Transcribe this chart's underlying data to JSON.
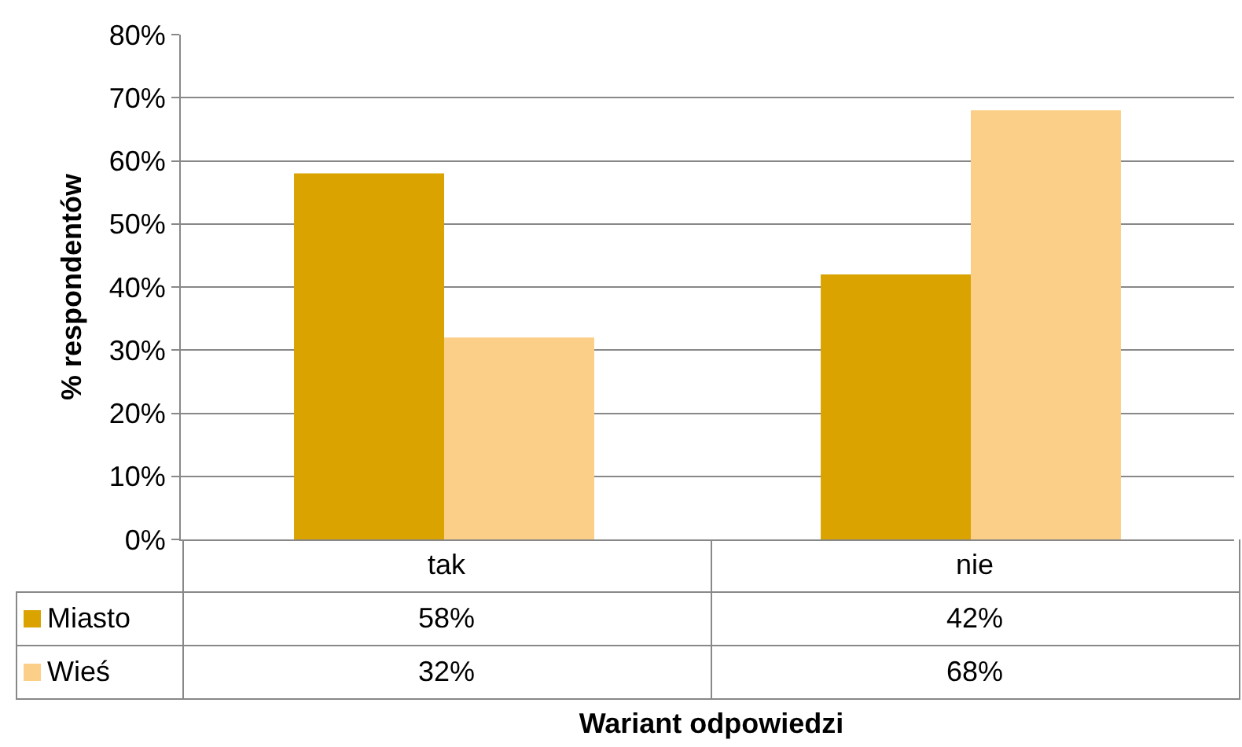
{
  "chart_data": {
    "type": "bar",
    "xlabel": "Wariant odpowiedzi",
    "ylabel": "% respondentów",
    "categories": [
      "tak",
      "nie"
    ],
    "series": [
      {
        "name": "Miasto",
        "color": "#daa300",
        "values": [
          58,
          42
        ],
        "value_labels": [
          "58%",
          "42%"
        ]
      },
      {
        "name": "Wieś",
        "color": "#fccf88",
        "values": [
          32,
          68
        ],
        "value_labels": [
          "32%",
          "68%"
        ]
      }
    ],
    "ylim": [
      0,
      80
    ],
    "yticks": [
      {
        "value": 0,
        "label": "0%"
      },
      {
        "value": 10,
        "label": "10%"
      },
      {
        "value": 20,
        "label": "20%"
      },
      {
        "value": 30,
        "label": "30%"
      },
      {
        "value": 40,
        "label": "40%"
      },
      {
        "value": 50,
        "label": "50%"
      },
      {
        "value": 60,
        "label": "60%"
      },
      {
        "value": 70,
        "label": "70%"
      },
      {
        "value": 80,
        "label": "80%"
      }
    ],
    "grid": "y",
    "legend": "bottom"
  }
}
